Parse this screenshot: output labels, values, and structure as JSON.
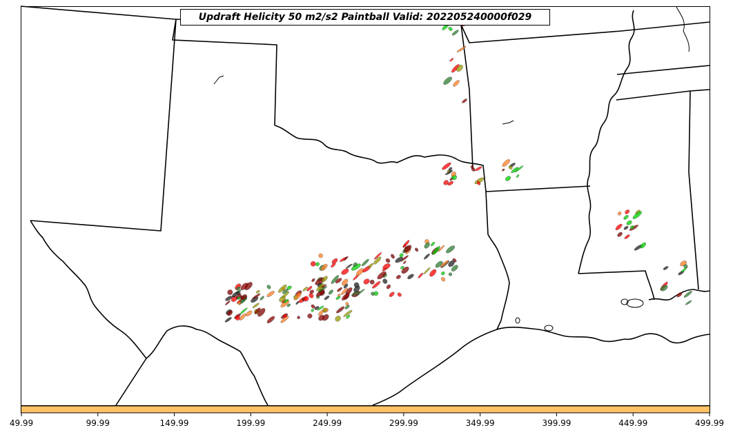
{
  "map": {
    "title": "Updraft Helicity 50 m2/s2 Paintball Valid: 202205240000f029",
    "colorbar": {
      "color": "#FFC266",
      "ticks": [
        "49.99",
        "99.99",
        "149.99",
        "199.99",
        "249.99",
        "299.99",
        "349.99",
        "399.99",
        "449.99",
        "499.99"
      ]
    },
    "member_colors": [
      "#8B0000",
      "#FF0000",
      "#00CC00",
      "#9A9A00",
      "#2E7D32",
      "#FF7F24",
      "#800000",
      "#222222"
    ]
  }
}
